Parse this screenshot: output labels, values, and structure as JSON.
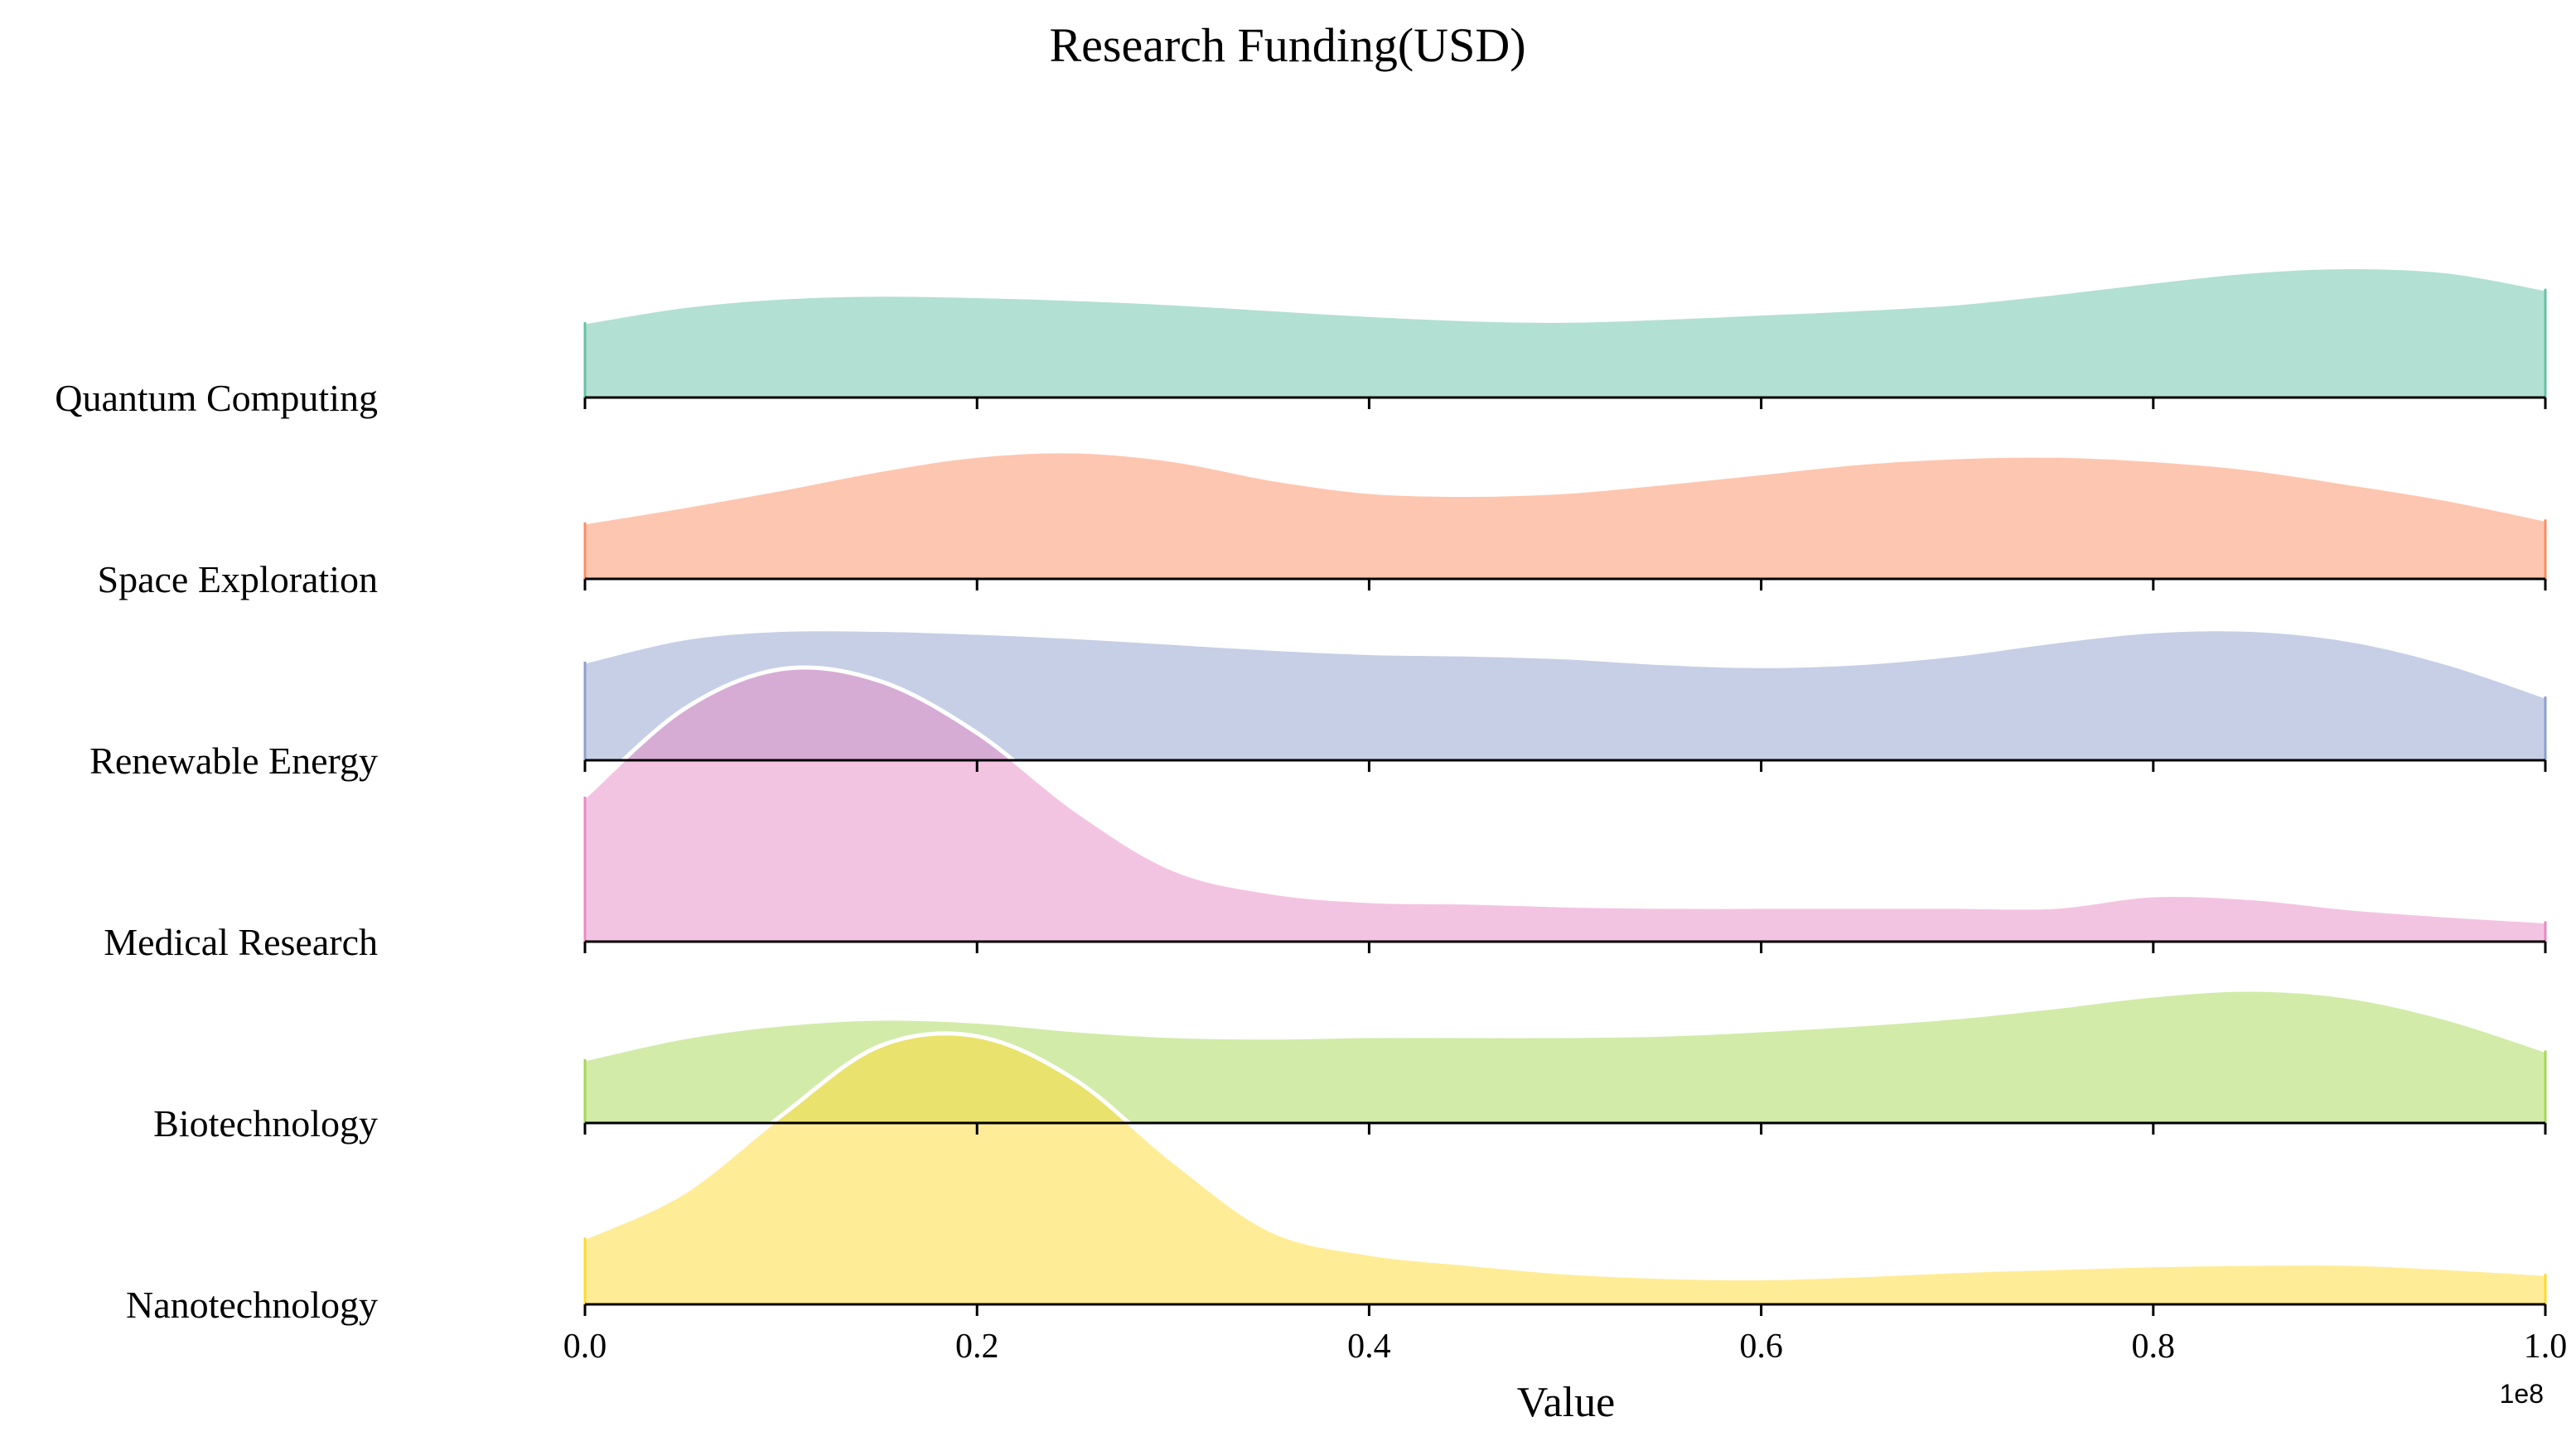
{
  "chart_data": {
    "type": "ridgeline (density)",
    "title": "Research Funding(USD)",
    "xlabel": "Value",
    "ylabel": "",
    "x_offset_label": "1e8",
    "x_tick_labels": [
      "0.0",
      "0.2",
      "0.4",
      "0.6",
      "0.8",
      "1.0"
    ],
    "xlim": [
      0,
      1
    ],
    "grid": false,
    "series": [
      {
        "name": "Quantum Computing",
        "color": "#66c2a5",
        "x": [
          0,
          0.05,
          0.1,
          0.15,
          0.2,
          0.25,
          0.3,
          0.35,
          0.4,
          0.45,
          0.5,
          0.55,
          0.6,
          0.65,
          0.7,
          0.75,
          0.8,
          0.85,
          0.9,
          0.95,
          1.0
        ],
        "density": [
          0.52,
          0.63,
          0.69,
          0.71,
          0.7,
          0.68,
          0.65,
          0.61,
          0.57,
          0.54,
          0.53,
          0.55,
          0.58,
          0.61,
          0.65,
          0.72,
          0.8,
          0.87,
          0.9,
          0.87,
          0.75
        ]
      },
      {
        "name": "Space Exploration",
        "color": "#fc8d62",
        "x": [
          0,
          0.05,
          0.1,
          0.15,
          0.2,
          0.25,
          0.3,
          0.35,
          0.4,
          0.45,
          0.5,
          0.55,
          0.6,
          0.65,
          0.7,
          0.75,
          0.8,
          0.85,
          0.9,
          0.95,
          1.0
        ],
        "density": [
          0.39,
          0.5,
          0.62,
          0.75,
          0.85,
          0.88,
          0.82,
          0.69,
          0.6,
          0.58,
          0.6,
          0.66,
          0.73,
          0.8,
          0.84,
          0.85,
          0.82,
          0.76,
          0.66,
          0.55,
          0.41
        ]
      },
      {
        "name": "Renewable Energy",
        "color": "#8da0cb",
        "x": [
          0,
          0.05,
          0.1,
          0.15,
          0.2,
          0.25,
          0.3,
          0.35,
          0.4,
          0.45,
          0.5,
          0.55,
          0.6,
          0.65,
          0.7,
          0.75,
          0.8,
          0.85,
          0.9,
          0.95,
          1.0
        ],
        "density": [
          0.68,
          0.84,
          0.9,
          0.9,
          0.88,
          0.85,
          0.81,
          0.77,
          0.74,
          0.73,
          0.71,
          0.67,
          0.65,
          0.67,
          0.73,
          0.82,
          0.89,
          0.9,
          0.83,
          0.67,
          0.44
        ]
      },
      {
        "name": "Medical Research",
        "color": "#e78ac3",
        "x": [
          0,
          0.05,
          0.1,
          0.15,
          0.2,
          0.25,
          0.3,
          0.35,
          0.4,
          0.45,
          0.5,
          0.55,
          0.6,
          0.65,
          0.7,
          0.75,
          0.8,
          0.85,
          0.9,
          0.95,
          1.0
        ],
        "density": [
          1.0,
          1.6,
          1.88,
          1.8,
          1.44,
          0.91,
          0.5,
          0.34,
          0.28,
          0.27,
          0.25,
          0.24,
          0.24,
          0.24,
          0.24,
          0.24,
          0.32,
          0.3,
          0.23,
          0.18,
          0.14
        ]
      },
      {
        "name": "Biotechnology",
        "color": "#a6d854",
        "x": [
          0,
          0.05,
          0.1,
          0.15,
          0.2,
          0.25,
          0.3,
          0.35,
          0.4,
          0.45,
          0.5,
          0.55,
          0.6,
          0.65,
          0.7,
          0.75,
          0.8,
          0.85,
          0.9,
          0.95,
          1.0
        ],
        "density": [
          0.44,
          0.59,
          0.68,
          0.72,
          0.7,
          0.64,
          0.6,
          0.59,
          0.6,
          0.6,
          0.6,
          0.61,
          0.64,
          0.68,
          0.73,
          0.8,
          0.88,
          0.92,
          0.87,
          0.72,
          0.5
        ]
      },
      {
        "name": "Nanotechnology",
        "color": "#ffd92f",
        "x": [
          0,
          0.05,
          0.1,
          0.15,
          0.2,
          0.25,
          0.3,
          0.35,
          0.4,
          0.45,
          0.5,
          0.55,
          0.6,
          0.65,
          0.7,
          0.75,
          0.8,
          0.85,
          0.9,
          0.95,
          1.0
        ],
        "density": [
          0.46,
          0.77,
          1.3,
          1.78,
          1.85,
          1.55,
          0.99,
          0.51,
          0.35,
          0.28,
          0.22,
          0.19,
          0.18,
          0.2,
          0.23,
          0.25,
          0.27,
          0.28,
          0.28,
          0.25,
          0.21
        ]
      }
    ]
  }
}
